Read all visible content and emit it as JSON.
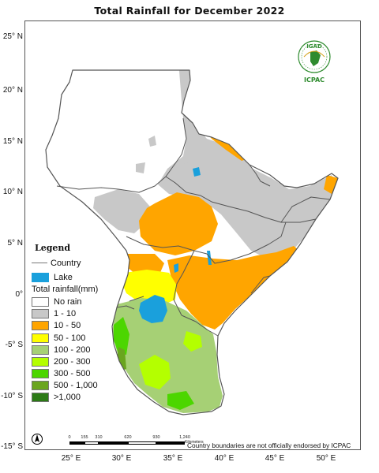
{
  "title": "Total  Rainfall for  December  2022",
  "axes": {
    "latitude_labels": [
      "25° N",
      "20° N",
      "15° N",
      "10° N",
      "5° N",
      "0°",
      "-5° S",
      "-10° S",
      "-15° S"
    ],
    "longitude_labels": [
      "25° E",
      "30° E",
      "35° E",
      "40° E",
      "45° E",
      "50° E"
    ]
  },
  "logo": {
    "top_text": "IGAD",
    "bottom_text": "ICPAC"
  },
  "legend": {
    "title": "Legend",
    "country_label": "Country",
    "lake_label": "Lake",
    "rainfall_heading": "Total rainfall(mm)",
    "classes": [
      {
        "label": "No rain",
        "color": "#ffffff"
      },
      {
        "label": "1 - 10",
        "color": "#c8c8c8"
      },
      {
        "label": "10 - 50",
        "color": "#ffa500"
      },
      {
        "label": "50 - 100",
        "color": "#ffff00"
      },
      {
        "label": "100 - 200",
        "color": "#a6d075"
      },
      {
        "label": "200 - 300",
        "color": "#b4ff00"
      },
      {
        "label": "300 - 500",
        "color": "#4cd600"
      },
      {
        "label": "500 - 1,000",
        "color": "#6aa51f"
      },
      {
        "label": ">1,000",
        "color": "#2c7a16"
      }
    ],
    "lake_color": "#1aa0dc"
  },
  "scale": {
    "ticks": [
      "0",
      "155",
      "310",
      "620",
      "930",
      "1,240"
    ],
    "unit": "Kilometers"
  },
  "disclaimer": "Country boundaries are not officially endorsed by ICPAC"
}
